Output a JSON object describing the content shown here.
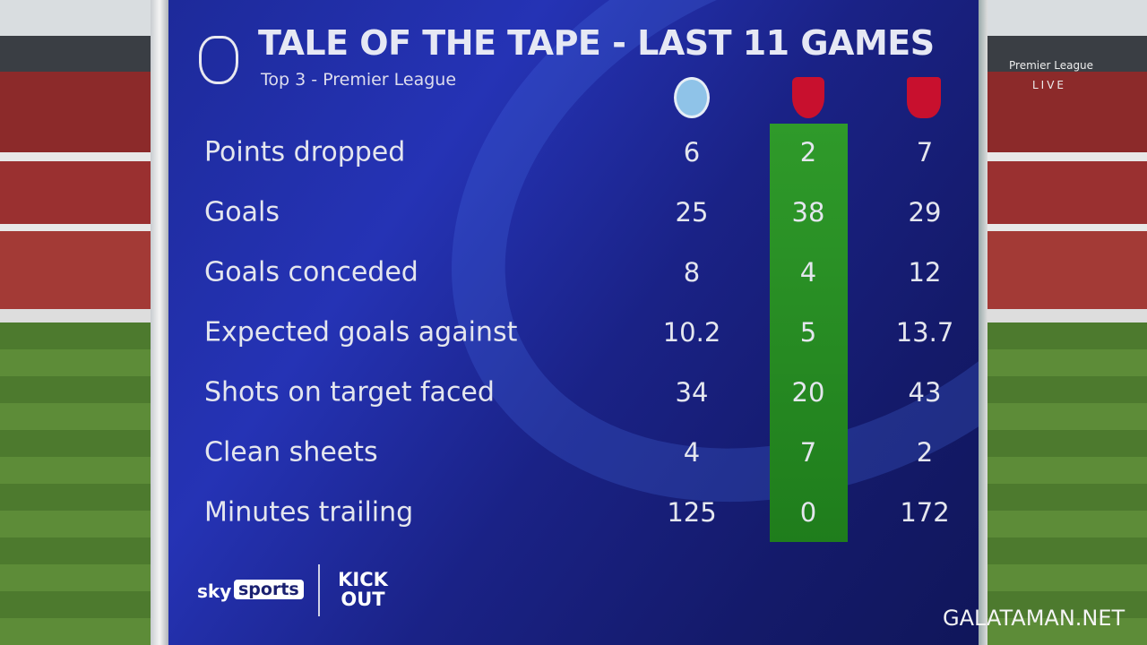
{
  "header": {
    "title": "TALE OF THE TAPE - LAST 11 GAMES",
    "subtitle": "Top 3 - Premier League"
  },
  "table": {
    "rows": [
      [
        "Points dropped",
        6,
        2,
        7
      ],
      [
        "Goals",
        25,
        38,
        29
      ],
      [
        "Goals conceded",
        8,
        4,
        12
      ],
      [
        "Expected goals against",
        10.2,
        5,
        13.7
      ],
      [
        "Shots on target faced",
        34,
        20,
        43
      ],
      [
        "Clean sheets",
        4,
        7,
        2
      ],
      [
        "Minutes trailing",
        125,
        0,
        172
      ]
    ]
  },
  "footer": {
    "brand_1": "sky",
    "brand_2": "sports",
    "partner": "KICK OUT"
  },
  "watermark": "GALATAMAN.NET",
  "background": {
    "live": "LIVE",
    "league": "Premier League"
  }
}
